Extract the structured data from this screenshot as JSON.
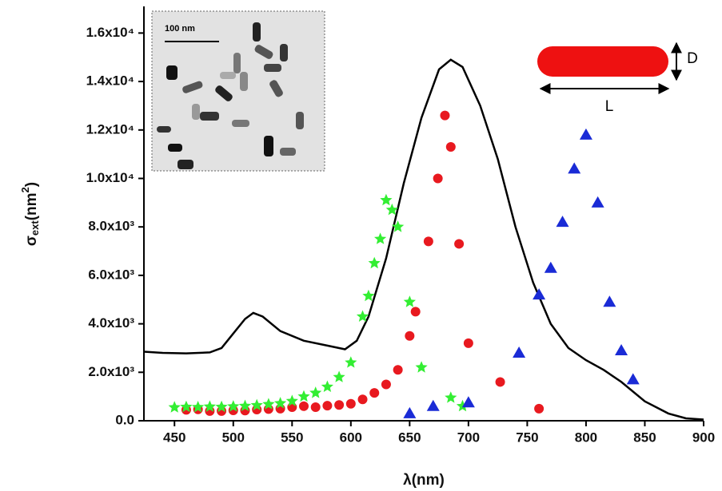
{
  "chart_data": {
    "type": "scatter",
    "x_label": "λ(nm)",
    "y_label": [
      "σ",
      "ext",
      "(nm",
      "2",
      ")"
    ],
    "xlim": [
      424,
      900
    ],
    "ylim": [
      0,
      17100
    ],
    "xticks": [
      450,
      500,
      550,
      600,
      650,
      700,
      750,
      800,
      850,
      900
    ],
    "yticks": [
      {
        "value": 0,
        "label": "0.0"
      },
      {
        "value": 2000,
        "label": "2.0x10³"
      },
      {
        "value": 4000,
        "label": "4.0x10³"
      },
      {
        "value": 6000,
        "label": "6.0x10³"
      },
      {
        "value": 8000,
        "label": "8.0x10³"
      },
      {
        "value": 10000,
        "label": "1.0x10⁴"
      },
      {
        "value": 12000,
        "label": "1.2x10⁴"
      },
      {
        "value": 14000,
        "label": "1.4x10⁴"
      },
      {
        "value": 16000,
        "label": "1.6x10⁴"
      }
    ],
    "series": [
      {
        "marker": "line",
        "color": "#000000",
        "x": [
          424,
          440,
          460,
          480,
          490,
          500,
          510,
          517,
          525,
          540,
          560,
          580,
          595,
          605,
          615,
          630,
          645,
          660,
          675,
          685,
          695,
          710,
          725,
          740,
          755,
          770,
          785,
          800,
          815,
          830,
          850,
          870,
          885,
          900
        ],
        "values": [
          2850,
          2800,
          2780,
          2820,
          3000,
          3600,
          4200,
          4450,
          4300,
          3700,
          3300,
          3100,
          2950,
          3300,
          4300,
          6700,
          9800,
          12500,
          14500,
          14900,
          14600,
          13000,
          10800,
          8000,
          5700,
          4000,
          3000,
          2500,
          2100,
          1600,
          800,
          300,
          100,
          50
        ]
      },
      {
        "marker": "circle",
        "color": "#e8191f",
        "x": [
          460,
          470,
          480,
          490,
          500,
          510,
          520,
          530,
          540,
          550,
          560,
          570,
          580,
          590,
          600,
          610,
          620,
          630,
          640,
          650,
          655,
          666,
          674,
          680,
          685,
          692,
          700,
          727,
          760
        ],
        "values": [
          450,
          470,
          400,
          400,
          430,
          420,
          460,
          480,
          500,
          560,
          600,
          560,
          620,
          650,
          700,
          880,
          1150,
          1500,
          2100,
          3500,
          4500,
          7400,
          10000,
          12600,
          11300,
          7300,
          3200,
          1600,
          500
        ]
      },
      {
        "marker": "star",
        "color": "#33ee33",
        "x": [
          450,
          460,
          470,
          480,
          490,
          500,
          510,
          520,
          530,
          540,
          550,
          560,
          570,
          580,
          590,
          600,
          610,
          615,
          620,
          625,
          630,
          635,
          640,
          650,
          660,
          685,
          695
        ],
        "values": [
          550,
          570,
          560,
          580,
          570,
          590,
          610,
          640,
          680,
          720,
          810,
          1000,
          1150,
          1400,
          1800,
          2400,
          4300,
          5150,
          6500,
          7500,
          9100,
          8700,
          8000,
          4900,
          2200,
          950,
          600
        ]
      },
      {
        "marker": "triangle",
        "color": "#1a2bd6",
        "x": [
          650,
          670,
          700,
          743,
          760,
          770,
          780,
          790,
          800,
          810,
          820,
          830,
          840
        ],
        "values": [
          300,
          600,
          750,
          2800,
          5200,
          6300,
          8200,
          10400,
          11800,
          9000,
          4900,
          2900,
          1700
        ]
      }
    ],
    "inset_scale_label": "100 nm",
    "annotations": [
      "D",
      "L"
    ]
  }
}
